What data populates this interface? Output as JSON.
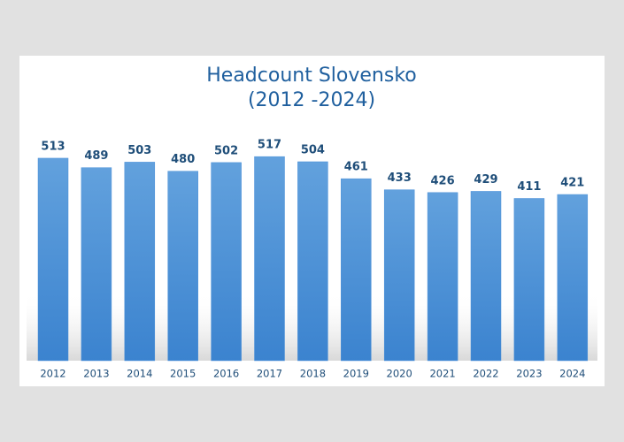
{
  "chart_data": {
    "type": "bar",
    "title": "Headcount Slovensko",
    "subtitle": "(2012 -2024)",
    "categories": [
      "2012",
      "2013",
      "2014",
      "2015",
      "2016",
      "2017",
      "2018",
      "2019",
      "2020",
      "2021",
      "2022",
      "2023",
      "2024"
    ],
    "values": [
      513,
      489,
      503,
      480,
      502,
      517,
      504,
      461,
      433,
      426,
      429,
      411,
      421
    ],
    "color": "#4a90d9"
  }
}
